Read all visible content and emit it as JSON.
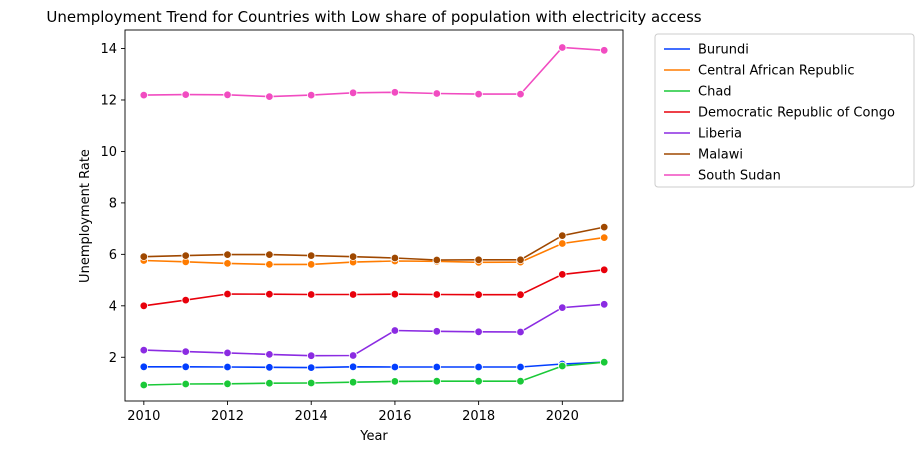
{
  "chart_data": {
    "type": "line",
    "title": "Unemployment Trend for Countries with Low share of population with electricity access",
    "xlabel": "Year",
    "ylabel": "Unemployment Rate",
    "xlim": [
      2009.55,
      2021.45
    ],
    "ylim": [
      0.3,
      14.72
    ],
    "xticks": [
      2010,
      2012,
      2014,
      2016,
      2018,
      2020
    ],
    "yticks": [
      2,
      4,
      6,
      8,
      10,
      12,
      14
    ],
    "grid": false,
    "legend_position": "outside-upper-right",
    "x": [
      2010,
      2011,
      2012,
      2013,
      2014,
      2015,
      2016,
      2017,
      2018,
      2019,
      2020,
      2021
    ],
    "series": [
      {
        "name": "Burundi",
        "color": "#023eff",
        "values": [
          1.63,
          1.63,
          1.62,
          1.61,
          1.6,
          1.63,
          1.62,
          1.62,
          1.62,
          1.62,
          1.74,
          1.81
        ]
      },
      {
        "name": "Central African Republic",
        "color": "#ff7c00",
        "values": [
          5.76,
          5.71,
          5.65,
          5.61,
          5.61,
          5.7,
          5.74,
          5.73,
          5.69,
          5.7,
          6.42,
          6.65
        ]
      },
      {
        "name": "Chad",
        "color": "#1ac938",
        "values": [
          0.92,
          0.96,
          0.97,
          0.99,
          1.0,
          1.03,
          1.06,
          1.07,
          1.07,
          1.07,
          1.66,
          1.81
        ]
      },
      {
        "name": "Democratic Republic of Congo",
        "color": "#e8000b",
        "values": [
          4.0,
          4.22,
          4.46,
          4.45,
          4.44,
          4.44,
          4.45,
          4.44,
          4.43,
          4.43,
          5.22,
          5.4
        ]
      },
      {
        "name": "Liberia",
        "color": "#8b2be2",
        "values": [
          2.28,
          2.22,
          2.17,
          2.11,
          2.06,
          2.07,
          3.04,
          3.01,
          2.99,
          2.98,
          3.93,
          4.06
        ]
      },
      {
        "name": "Malawi",
        "color": "#9f4800",
        "values": [
          5.91,
          5.95,
          5.99,
          5.99,
          5.95,
          5.91,
          5.86,
          5.78,
          5.79,
          5.79,
          6.73,
          7.06
        ]
      },
      {
        "name": "South Sudan",
        "color": "#f14cc1",
        "values": [
          12.19,
          12.21,
          12.2,
          12.13,
          12.19,
          12.28,
          12.3,
          12.25,
          12.23,
          12.23,
          14.04,
          13.93
        ]
      }
    ]
  }
}
